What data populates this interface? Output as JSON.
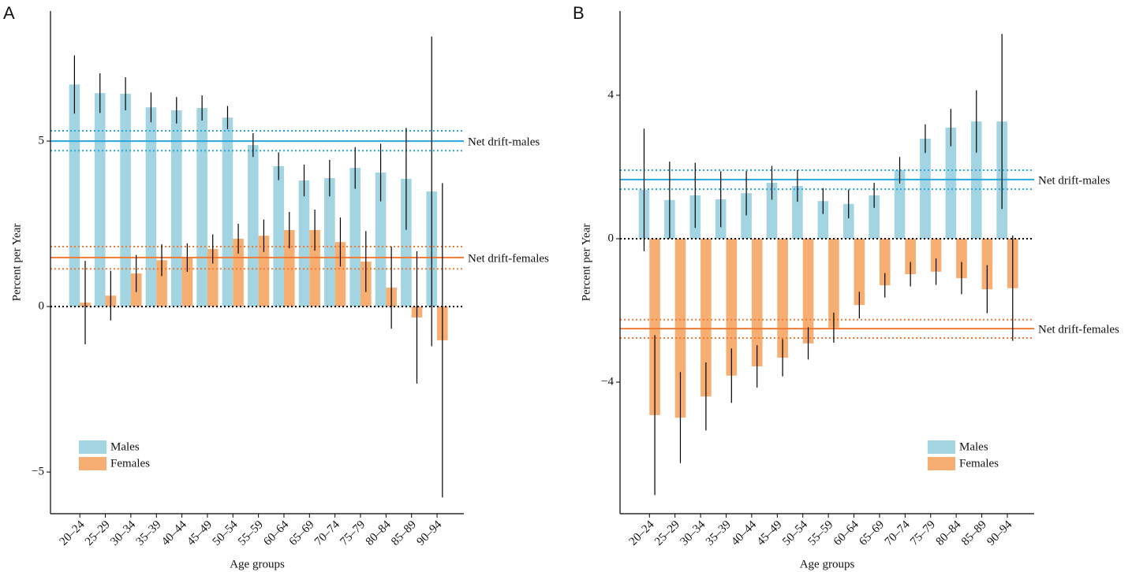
{
  "chart_data": [
    {
      "type": "bar",
      "panel_label": "A",
      "ylabel": "Percent per Year",
      "xlabel": "Age groups",
      "categories": [
        "20–24",
        "25–29",
        "30–34",
        "35–39",
        "40–44",
        "45–49",
        "50–54",
        "55–59",
        "60–64",
        "65–69",
        "70–74",
        "75–79",
        "80–84",
        "85–89",
        "90–94"
      ],
      "series": [
        {
          "name": "Males",
          "color": "#a3d4e2",
          "values": [
            6.71,
            6.45,
            6.43,
            6.02,
            5.93,
            6.0,
            5.71,
            4.88,
            4.24,
            3.81,
            3.88,
            4.19,
            4.05,
            3.86,
            3.48
          ],
          "errors": [
            0.88,
            0.6,
            0.5,
            0.45,
            0.4,
            0.38,
            0.35,
            0.36,
            0.42,
            0.48,
            0.55,
            0.63,
            0.87,
            1.54,
            4.68
          ]
        },
        {
          "name": "Females",
          "color": "#f6ae72",
          "values": [
            0.12,
            0.33,
            1.0,
            1.4,
            1.48,
            1.74,
            2.05,
            2.14,
            2.31,
            2.31,
            1.95,
            1.36,
            0.57,
            -0.33,
            -1.02
          ],
          "errors": [
            1.26,
            0.75,
            0.56,
            0.48,
            0.43,
            0.44,
            0.45,
            0.49,
            0.55,
            0.62,
            0.74,
            0.92,
            1.24,
            2.0,
            4.75
          ]
        }
      ],
      "reference_lines": [
        {
          "label": "Net drift-males",
          "value": 5.0,
          "ci": [
            4.71,
            5.31
          ],
          "color": "#2aa7dd"
        },
        {
          "label": "Net drift-females",
          "value": 1.48,
          "ci": [
            1.14,
            1.81
          ],
          "color": "#ef7b34"
        }
      ],
      "ylim": [
        -6.26,
        8.93
      ],
      "yticks": [
        {
          "value": -5,
          "label": "−5"
        },
        0,
        5
      ],
      "legend": "bottom-left"
    },
    {
      "type": "bar",
      "panel_label": "B",
      "ylabel": "Percent per Year",
      "xlabel": "Age groups",
      "categories": [
        "20–24",
        "25–29",
        "30–34",
        "35–39",
        "40–44",
        "45–49",
        "50–54",
        "55–59",
        "60–64",
        "65–69",
        "70–74",
        "75–79",
        "80–84",
        "85–89",
        "90–94"
      ],
      "series": [
        {
          "name": "Males",
          "color": "#a3d4e2",
          "values": [
            1.36,
            1.08,
            1.21,
            1.1,
            1.27,
            1.56,
            1.47,
            1.05,
            0.97,
            1.21,
            1.91,
            2.79,
            3.1,
            3.27,
            3.27
          ],
          "errors": [
            1.71,
            1.07,
            0.91,
            0.78,
            0.62,
            0.47,
            0.44,
            0.36,
            0.4,
            0.35,
            0.37,
            0.4,
            0.52,
            0.87,
            2.44
          ]
        },
        {
          "name": "Females",
          "color": "#f6ae72",
          "values": [
            -4.92,
            -4.99,
            -4.4,
            -3.82,
            -3.56,
            -3.32,
            -2.92,
            -2.48,
            -1.85,
            -1.3,
            -0.99,
            -0.92,
            -1.1,
            -1.41,
            -1.38
          ],
          "errors": [
            2.23,
            1.27,
            0.95,
            0.76,
            0.59,
            0.52,
            0.45,
            0.42,
            0.37,
            0.34,
            0.34,
            0.37,
            0.45,
            0.67,
            1.47
          ]
        }
      ],
      "reference_lines": [
        {
          "label": "Net drift-males",
          "value": 1.65,
          "ci": [
            1.38,
            1.91
          ],
          "color": "#2aa7dd"
        },
        {
          "label": "Net drift-females",
          "value": -2.51,
          "ci": [
            -2.77,
            -2.26
          ],
          "color": "#ef7b34"
        }
      ],
      "ylim": [
        -7.67,
        6.35
      ],
      "yticks": [
        {
          "value": -4,
          "label": "−4"
        },
        0,
        4
      ],
      "legend": "bottom-right"
    }
  ]
}
